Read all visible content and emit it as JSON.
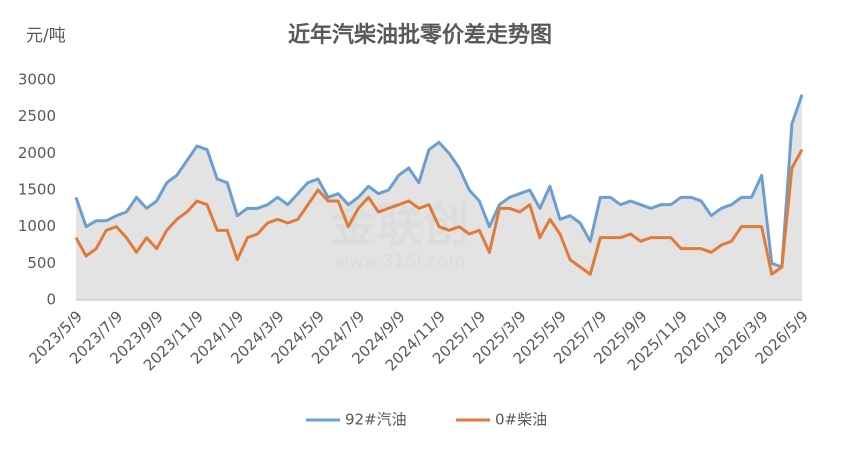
{
  "chart_data": {
    "type": "line",
    "title": "近年汽柴油批零价差走势图",
    "y_axis_label": "元/吨",
    "watermark": [
      "金联创",
      "www.315i.com"
    ],
    "categories": [
      "2023/5/9",
      null,
      null,
      null,
      "2023/7/9",
      null,
      null,
      null,
      "2023/9/9",
      null,
      null,
      null,
      "2023/11/9",
      null,
      null,
      null,
      "2024/1/9",
      null,
      null,
      null,
      "2024/3/9",
      null,
      null,
      null,
      "2024/5/9",
      null,
      null,
      null,
      "2024/7/9",
      null,
      null,
      null,
      "2024/9/9",
      null,
      null,
      null,
      "2024/11/9",
      null,
      null,
      null,
      "2025/1/9",
      null,
      null,
      null,
      "2025/3/9",
      null,
      null,
      null,
      "2025/5/9",
      null,
      null,
      null,
      "2025/7/9",
      null,
      null,
      null,
      "2025/9/9",
      null,
      null,
      null,
      "2025/11/9",
      null,
      null,
      null,
      "2026/1/9",
      null,
      null,
      null,
      "2026/3/9",
      null,
      null,
      null,
      "2026/5/9"
    ],
    "series": [
      {
        "name": "92#汽油",
        "color": "#6b9fd1",
        "values": [
          1400,
          1000,
          1080,
          1080,
          1150,
          1200,
          1400,
          1250,
          1350,
          1600,
          1700,
          1900,
          2100,
          2050,
          1650,
          1600,
          1150,
          1250,
          1250,
          1300,
          1400,
          1300,
          1450,
          1600,
          1650,
          1400,
          1450,
          1300,
          1400,
          1550,
          1450,
          1500,
          1700,
          1800,
          1600,
          2050,
          2150,
          2000,
          1800,
          1500,
          1350,
          1000,
          1300,
          1400,
          1450,
          1500,
          1250,
          1550,
          1100,
          1150,
          1050,
          800,
          1400,
          1400,
          1300,
          1350,
          1300,
          1250,
          1300,
          1300,
          1400,
          1400,
          1350,
          1150,
          1250,
          1300,
          1400,
          1400,
          1700,
          500,
          450,
          2400,
          2800
        ]
      },
      {
        "name": "0#柴油",
        "color": "#e07b39",
        "values": [
          850,
          600,
          700,
          950,
          1000,
          850,
          650,
          850,
          700,
          950,
          1100,
          1200,
          1350,
          1300,
          950,
          950,
          550,
          850,
          900,
          1050,
          1100,
          1050,
          1100,
          1300,
          1500,
          1350,
          1350,
          1000,
          1250,
          1400,
          1200,
          1250,
          1300,
          1350,
          1250,
          1300,
          1000,
          950,
          1000,
          900,
          950,
          650,
          1250,
          1250,
          1200,
          1300,
          850,
          1100,
          900,
          550,
          450,
          350,
          850,
          850,
          850,
          900,
          800,
          850,
          850,
          850,
          700,
          700,
          700,
          650,
          750,
          800,
          1000,
          1000,
          1000,
          350,
          450,
          1800,
          2050
        ]
      }
    ],
    "area_color": "#dcdcdc",
    "ylim": [
      0,
      3000
    ],
    "yticks": [
      0,
      500,
      1000,
      1500,
      2000,
      2500,
      3000
    ],
    "grid": false,
    "legend": "bottom"
  }
}
